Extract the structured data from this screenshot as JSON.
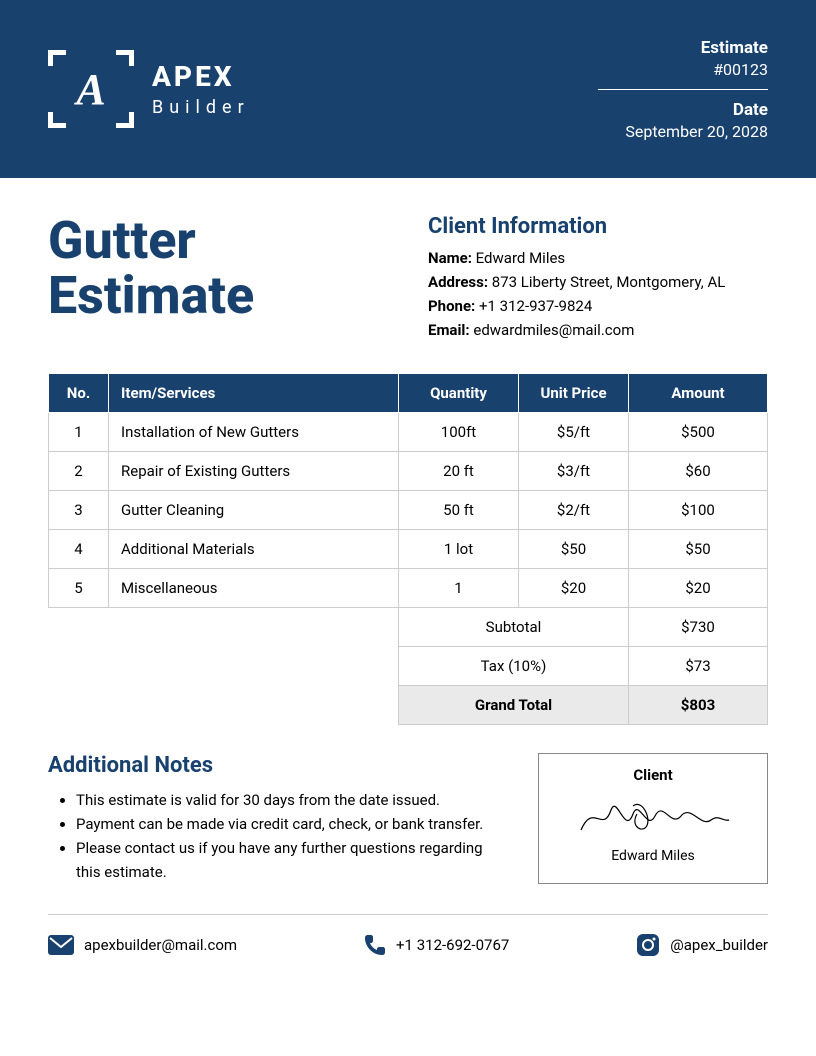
{
  "colors": {
    "primary": "#18416e",
    "white": "#ffffff",
    "border": "#cccccc",
    "shade": "#eaeaea",
    "text": "#000000"
  },
  "header": {
    "logo_letter": "A",
    "brand_main": "APEX",
    "brand_sub": "Builder",
    "estimate_label": "Estimate",
    "estimate_value": "#00123",
    "date_label": "Date",
    "date_value": "September 20, 2028"
  },
  "main": {
    "title_line1": "Gutter",
    "title_line2": "Estimate"
  },
  "client": {
    "heading": "Client Information",
    "name_label": "Name:",
    "name_value": "Edward Miles",
    "address_label": "Address:",
    "address_value": "873 Liberty Street, Montgomery, AL",
    "phone_label": "Phone:",
    "phone_value": "+1 312-937-9824",
    "email_label": "Email:",
    "email_value": "edwardmiles@mail.com"
  },
  "table": {
    "columns": [
      "No.",
      "Item/Services",
      "Quantity",
      "Unit Price",
      "Amount"
    ],
    "rows": [
      {
        "no": "1",
        "item": "Installation of New Gutters",
        "qty": "100ft",
        "unit": "$5/ft",
        "amount": "$500"
      },
      {
        "no": "2",
        "item": "Repair of Existing Gutters",
        "qty": "20 ft",
        "unit": "$3/ft",
        "amount": "$60"
      },
      {
        "no": "3",
        "item": "Gutter Cleaning",
        "qty": "50 ft",
        "unit": "$2/ft",
        "amount": "$100"
      },
      {
        "no": "4",
        "item": "Additional Materials",
        "qty": "1 lot",
        "unit": "$50",
        "amount": "$50"
      },
      {
        "no": "5",
        "item": "Miscellaneous",
        "qty": "1",
        "unit": "$20",
        "amount": "$20"
      }
    ],
    "subtotal_label": "Subtotal",
    "subtotal_value": "$730",
    "tax_label": "Tax (10%)",
    "tax_value": "$73",
    "total_label": "Grand Total",
    "total_value": "$803"
  },
  "notes": {
    "heading": "Additional Notes",
    "items": [
      "This estimate is valid for 30 days from the date issued.",
      "Payment can be made via credit card, check, or bank transfer.",
      "Please contact us if you have any further questions regarding this estimate."
    ]
  },
  "signature": {
    "label": "Client",
    "name": "Edward Miles"
  },
  "footer": {
    "email": "apexbuilder@mail.com",
    "phone": "+1 312-692-0767",
    "social": "@apex_builder"
  }
}
